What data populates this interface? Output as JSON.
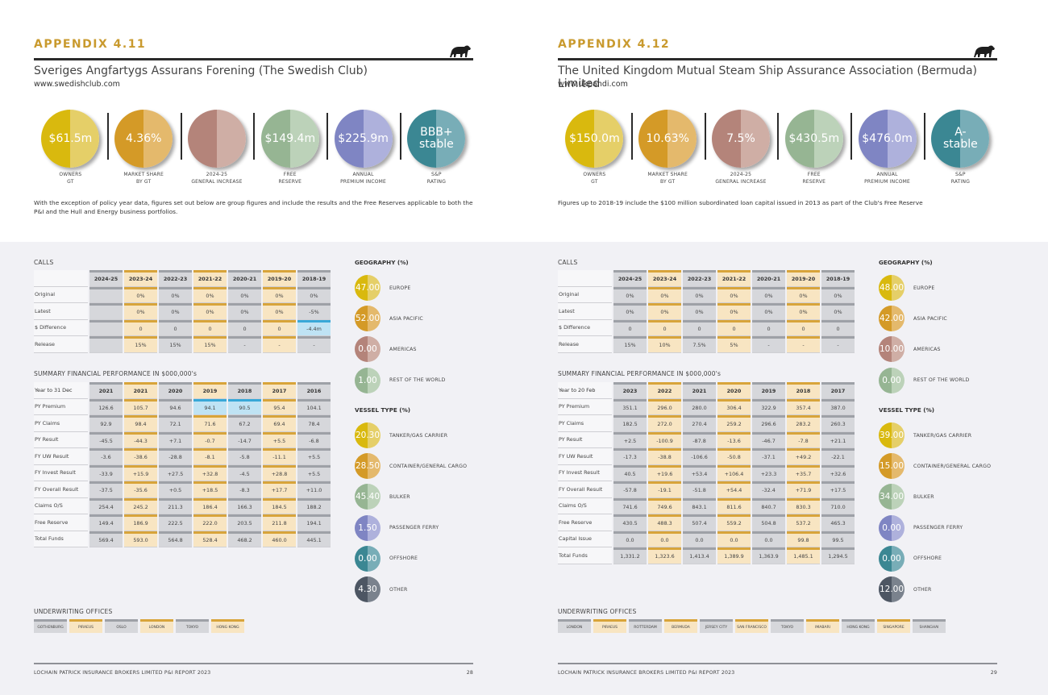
{
  "colors": {
    "accent": "#c99a2e",
    "yellow": [
      "#d9b90e",
      "#e5cf68"
    ],
    "orange": [
      "#d49a27",
      "#e4b96c"
    ],
    "rose": [
      "#b4847a",
      "#cfaea5"
    ],
    "green": [
      "#96b593",
      "#bcd2b9"
    ],
    "violet": [
      "#7f85c3",
      "#aeb1dc"
    ],
    "teal": [
      "#3b8793",
      "#78adb7"
    ],
    "slate": [
      "#4d5663",
      "#7a828d"
    ]
  },
  "left": {
    "appendix": "APPENDIX 4.11",
    "title": "Sveriges Angfartygs Assurans Forening (The Swedish Club)",
    "url": "www.swedishclub.com",
    "kpis": [
      {
        "value": "$61.5m",
        "label1": "OWNERS",
        "label2": "GT"
      },
      {
        "value": "4.36%",
        "label1": "MARKET SHARE",
        "label2": "BY GT"
      },
      {
        "value": "",
        "label1": "2024-25",
        "label2": "GENERAL INCREASE"
      },
      {
        "value": "$149.4m",
        "label1": "FREE",
        "label2": "RESERVE"
      },
      {
        "value": "$225.9m",
        "label1": "ANNUAL",
        "label2": "PREMIUM INCOME"
      },
      {
        "value": "BBB+ stable",
        "label1": "S&P",
        "label2": "RATING"
      }
    ],
    "note": "With the exception of policy year data, figures set out below are group figures and include the results and the Free Reserves applicable to both the P&I and the Hull and Energy business portfolios.",
    "calls": {
      "title": "CALLS",
      "headers": [
        "2024-25",
        "2023-24",
        "2022-23",
        "2021-22",
        "2020-21",
        "2019-20",
        "2018-19"
      ],
      "rows": [
        {
          "label": "Original",
          "values": [
            "",
            "0%",
            "0%",
            "0%",
            "0%",
            "0%",
            "0%"
          ]
        },
        {
          "label": "Latest",
          "values": [
            "",
            "0%",
            "0%",
            "0%",
            "0%",
            "0%",
            "-5%"
          ]
        },
        {
          "label": "$ Difference",
          "values": [
            "",
            "0",
            "0",
            "0",
            "0",
            "0",
            "-4.4m"
          ]
        },
        {
          "label": "Release",
          "values": [
            "",
            "15%",
            "15%",
            "15%",
            "-",
            "-",
            "-"
          ]
        }
      ]
    },
    "summary": {
      "title": "SUMMARY FINANCIAL PERFORMANCE IN $000,000's",
      "year_label": "Year to 31 Dec",
      "headers": [
        "2021",
        "2021",
        "2020",
        "2019",
        "2018",
        "2017",
        "2016"
      ],
      "rows": [
        {
          "label": "PY Premium",
          "values": [
            "126.6",
            "105.7",
            "94.6",
            "94.1",
            "90.5",
            "95.4",
            "104.1"
          ]
        },
        {
          "label": "PY Claims",
          "values": [
            "92.9",
            "98.4",
            "72.1",
            "71.6",
            "67.2",
            "69.4",
            "78.4"
          ]
        },
        {
          "label": "PY Result",
          "values": [
            "-45.5",
            "-44.3",
            "+7.1",
            "-0.7",
            "-14.7",
            "+5.5",
            "-6.8"
          ]
        },
        {
          "label": "FY UW Result",
          "values": [
            "-3.6",
            "-38.6",
            "-28.8",
            "-8.1",
            "-5.8",
            "-11.1",
            "+5.5"
          ]
        },
        {
          "label": "FY Invest Result",
          "values": [
            "-33.9",
            "+15.9",
            "+27.5",
            "+32.8",
            "-4.5",
            "+28.8",
            "+5.5"
          ]
        },
        {
          "label": "FY Overall Result",
          "values": [
            "-37.5",
            "-35.6",
            "+0.5",
            "+18.5",
            "-8.3",
            "+17.7",
            "+11.0"
          ]
        },
        {
          "label": "Claims O/S",
          "values": [
            "254.4",
            "245.2",
            "211.3",
            "186.4",
            "166.3",
            "184.5",
            "188.2"
          ]
        },
        {
          "label": "Free Reserve",
          "values": [
            "149.4",
            "186.9",
            "222.5",
            "222.0",
            "203.5",
            "211.8",
            "194.1"
          ]
        },
        {
          "label": "Total Funds",
          "values": [
            "569.4",
            "593.0",
            "564.8",
            "528.4",
            "468.2",
            "460.0",
            "445.1"
          ]
        }
      ]
    },
    "geography": {
      "title": "GEOGRAPHY (%)",
      "items": [
        {
          "value": "47.00",
          "label": "EUROPE"
        },
        {
          "value": "52.00",
          "label": "ASIA PACIFIC"
        },
        {
          "value": "0.00",
          "label": "AMERICAS"
        },
        {
          "value": "1.00",
          "label": "REST OF THE WORLD"
        }
      ]
    },
    "vessel": {
      "title": "VESSEL TYPE (%)",
      "items": [
        {
          "value": "20.30",
          "label": "TANKER/GAS CARRIER"
        },
        {
          "value": "28.50",
          "label": "CONTAINER/GENERAL CARGO"
        },
        {
          "value": "45.40",
          "label": "BULKER"
        },
        {
          "value": "1.50",
          "label": "PASSENGER FERRY"
        },
        {
          "value": "0.00",
          "label": "OFFSHORE"
        },
        {
          "value": "4.30",
          "label": "OTHER"
        }
      ]
    },
    "offices_title": "UNDERWRITING OFFICES",
    "offices": [
      "GOTHENBURG",
      "PIRAEUS",
      "OSLO",
      "LONDON",
      "TOKYO",
      "HONG KONG"
    ],
    "footer_text": "LOCHAIN PATRICK INSURANCE BROKERS LIMITED P&I REPORT 2023",
    "page_number": "28"
  },
  "right": {
    "appendix": "APPENDIX 4.12",
    "title": "The United Kingdom Mutual Steam Ship Assurance Association (Bermuda) Limited",
    "url": "www.ukpandi.com",
    "kpis": [
      {
        "value": "$150.0m",
        "label1": "OWNERS",
        "label2": "GT"
      },
      {
        "value": "10.63%",
        "label1": "MARKET SHARE",
        "label2": "BY GT"
      },
      {
        "value": "7.5%",
        "label1": "2024-25",
        "label2": "GENERAL INCREASE"
      },
      {
        "value": "$430.5m",
        "label1": "FREE",
        "label2": "RESERVE"
      },
      {
        "value": "$476.0m",
        "label1": "ANNUAL",
        "label2": "PREMIUM INCOME"
      },
      {
        "value": "A- stable",
        "label1": "S&P",
        "label2": "RATING"
      }
    ],
    "note": "Figures up to 2018-19 include the $100 million subordinated loan capital issued in 2013 as part of the Club's Free Reserve",
    "calls": {
      "title": "CALLS",
      "headers": [
        "2024-25",
        "2023-24",
        "2022-23",
        "2021-22",
        "2020-21",
        "2019-20",
        "2018-19"
      ],
      "rows": [
        {
          "label": "Original",
          "values": [
            "0%",
            "0%",
            "0%",
            "0%",
            "0%",
            "0%",
            "0%"
          ]
        },
        {
          "label": "Latest",
          "values": [
            "0%",
            "0%",
            "0%",
            "0%",
            "0%",
            "0%",
            "0%"
          ]
        },
        {
          "label": "$ Difference",
          "values": [
            "0",
            "0",
            "0",
            "0",
            "0",
            "0",
            "0"
          ]
        },
        {
          "label": "Release",
          "values": [
            "15%",
            "10%",
            "7.5%",
            "5%",
            "-",
            "-",
            "-"
          ]
        }
      ]
    },
    "summary": {
      "title": "SUMMARY FINANCIAL PERFORMANCE IN $000,000's",
      "year_label": "Year to 20 Feb",
      "headers": [
        "2023",
        "2022",
        "2021",
        "2020",
        "2019",
        "2018",
        "2017"
      ],
      "rows": [
        {
          "label": "PY Premium",
          "values": [
            "351.1",
            "296.0",
            "280.0",
            "306.4",
            "322.9",
            "357.4",
            "387.0"
          ]
        },
        {
          "label": "PY Claims",
          "values": [
            "182.5",
            "272.0",
            "270.4",
            "259.2",
            "296.6",
            "283.2",
            "260.3"
          ]
        },
        {
          "label": "PY Result",
          "values": [
            "+2.5",
            "-100.9",
            "-87.8",
            "-13.6",
            "-46.7",
            "-7.8",
            "+21.1"
          ]
        },
        {
          "label": "FY UW Result",
          "values": [
            "-17.3",
            "-38.8",
            "-106.6",
            "-50.8",
            "-37.1",
            "+49.2",
            "-22.1"
          ]
        },
        {
          "label": "FY Invest Result",
          "values": [
            "40.5",
            "+19.6",
            "+53.4",
            "+106.4",
            "+23.3",
            "+35.7",
            "+32.6"
          ]
        },
        {
          "label": "FY Overall Result",
          "values": [
            "-57.8",
            "-19.1",
            "-51.8",
            "+54.4",
            "-32.4",
            "+71.9",
            "+17.5"
          ]
        },
        {
          "label": "Claims O/S",
          "values": [
            "741.6",
            "749.6",
            "843.1",
            "811.6",
            "840.7",
            "830.3",
            "710.0"
          ]
        },
        {
          "label": "Free Reserve",
          "values": [
            "430.5",
            "488.3",
            "507.4",
            "559.2",
            "504.8",
            "537.2",
            "465.3"
          ]
        },
        {
          "label": "Capital Issue",
          "values": [
            "0.0",
            "0.0",
            "0.0",
            "0.0",
            "0.0",
            "99.8",
            "99.5"
          ]
        },
        {
          "label": "Total Funds",
          "values": [
            "1,331.2",
            "1,323.6",
            "1,413.4",
            "1,389.9",
            "1,363.9",
            "1,485.1",
            "1,294.5"
          ]
        }
      ]
    },
    "geography": {
      "title": "GEOGRAPHY (%)",
      "items": [
        {
          "value": "48.00",
          "label": "EUROPE"
        },
        {
          "value": "42.00",
          "label": "ASIA PACIFIC"
        },
        {
          "value": "10.00",
          "label": "AMERICAS"
        },
        {
          "value": "0.00",
          "label": "REST OF THE WORLD"
        }
      ]
    },
    "vessel": {
      "title": "VESSEL TYPE (%)",
      "items": [
        {
          "value": "39.00",
          "label": "TANKER/GAS CARRIER"
        },
        {
          "value": "15.00",
          "label": "CONTAINER/GENERAL CARGO"
        },
        {
          "value": "34.00",
          "label": "BULKER"
        },
        {
          "value": "0.00",
          "label": "PASSENGER FERRY"
        },
        {
          "value": "0.00",
          "label": "OFFSHORE"
        },
        {
          "value": "12.00",
          "label": "OTHER"
        }
      ]
    },
    "offices_title": "UNDERWRITING OFFICES",
    "offices": [
      "LONDON",
      "PIRAEUS",
      "ROTTERDAM",
      "BERMUDA",
      "JERSEY CITY",
      "SAN FRANCISCO",
      "TOKYO",
      "IMABARI",
      "HONG KONG",
      "SINGAPORE",
      "SHANGHAI"
    ],
    "footer_text": "LOCHAIN PATRICK INSURANCE BROKERS LIMITED P&I REPORT 2023",
    "page_number": "29"
  }
}
